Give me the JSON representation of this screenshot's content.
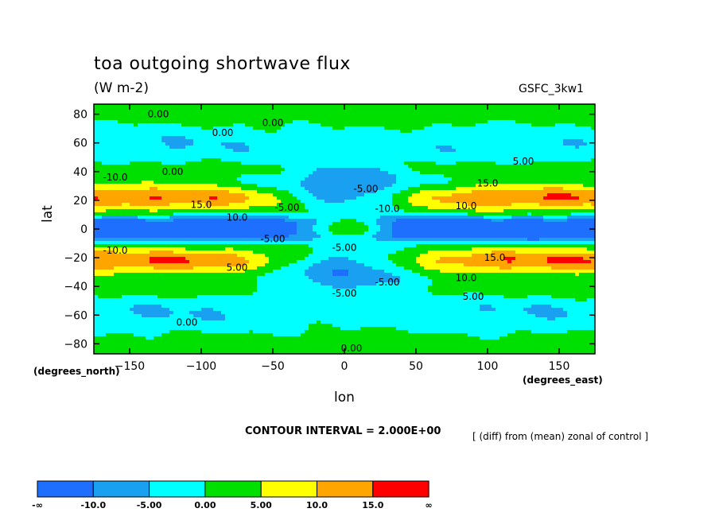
{
  "title": "toa outgoing shortwave flux",
  "units": "(W m-2)",
  "source": "GSFC_3kw1",
  "annotations": {
    "contour_interval": "CONTOUR INTERVAL = 2.000E+00",
    "note": "[ (diff) from (mean) zonal of control ]"
  },
  "chart_data": {
    "type": "heatmap",
    "xlabel": "lon",
    "xunits": "(degrees_east)",
    "ylabel": "lat",
    "yunits": "(degrees_north)",
    "xlim": [
      -175,
      175
    ],
    "ylim": [
      -87,
      87
    ],
    "xticks": [
      -150,
      -100,
      -50,
      0,
      50,
      100,
      150
    ],
    "yticks": [
      80,
      60,
      40,
      20,
      0,
      -20,
      -40,
      -60,
      -80
    ],
    "contour_interval": 2.0,
    "levels": [
      -10.0,
      -5.0,
      0.0,
      5.0,
      10.0,
      15.0
    ],
    "colorbar": {
      "labels": [
        "-∞",
        "-10.0",
        "-5.00",
        "0.00",
        "5.00",
        "10.0",
        "15.0",
        "∞"
      ],
      "colors": [
        "#1f6fff",
        "#19a0f0",
        "#00ffff",
        "#00e000",
        "#ffff00",
        "#ffa500",
        "#ff0000"
      ]
    },
    "contour_labels": [
      {
        "text": "0.00",
        "lon": -130,
        "lat": 80
      },
      {
        "text": "0.00",
        "lon": -85,
        "lat": 67
      },
      {
        "text": "0.00",
        "lon": -50,
        "lat": 74
      },
      {
        "text": "0.00",
        "lon": -120,
        "lat": 40
      },
      {
        "text": "-10.0",
        "lon": -160,
        "lat": 36
      },
      {
        "text": "-5.00",
        "lon": 15,
        "lat": 28
      },
      {
        "text": "-10.0",
        "lon": 30,
        "lat": 14
      },
      {
        "text": "15.0",
        "lon": -100,
        "lat": 17
      },
      {
        "text": "-5.00",
        "lon": -40,
        "lat": 15
      },
      {
        "text": "10.0",
        "lon": -75,
        "lat": 8
      },
      {
        "text": "5.00",
        "lon": 125,
        "lat": 47
      },
      {
        "text": "15.0",
        "lon": 100,
        "lat": 32
      },
      {
        "text": "10.0",
        "lon": 85,
        "lat": 16
      },
      {
        "text": "-5.00",
        "lon": -50,
        "lat": -7
      },
      {
        "text": "-10.0",
        "lon": -160,
        "lat": -15
      },
      {
        "text": "-5.00",
        "lon": 0,
        "lat": -13
      },
      {
        "text": "5.00",
        "lon": -75,
        "lat": -27
      },
      {
        "text": "15.0",
        "lon": 105,
        "lat": -20
      },
      {
        "text": "-5.00",
        "lon": 30,
        "lat": -37
      },
      {
        "text": "10.0",
        "lon": 85,
        "lat": -34
      },
      {
        "text": "-5.00",
        "lon": 0,
        "lat": -45
      },
      {
        "text": "5.00",
        "lon": 90,
        "lat": -47
      },
      {
        "text": "0.00",
        "lon": -110,
        "lat": -65
      },
      {
        "text": "0.00",
        "lon": 5,
        "lat": -83
      }
    ]
  }
}
